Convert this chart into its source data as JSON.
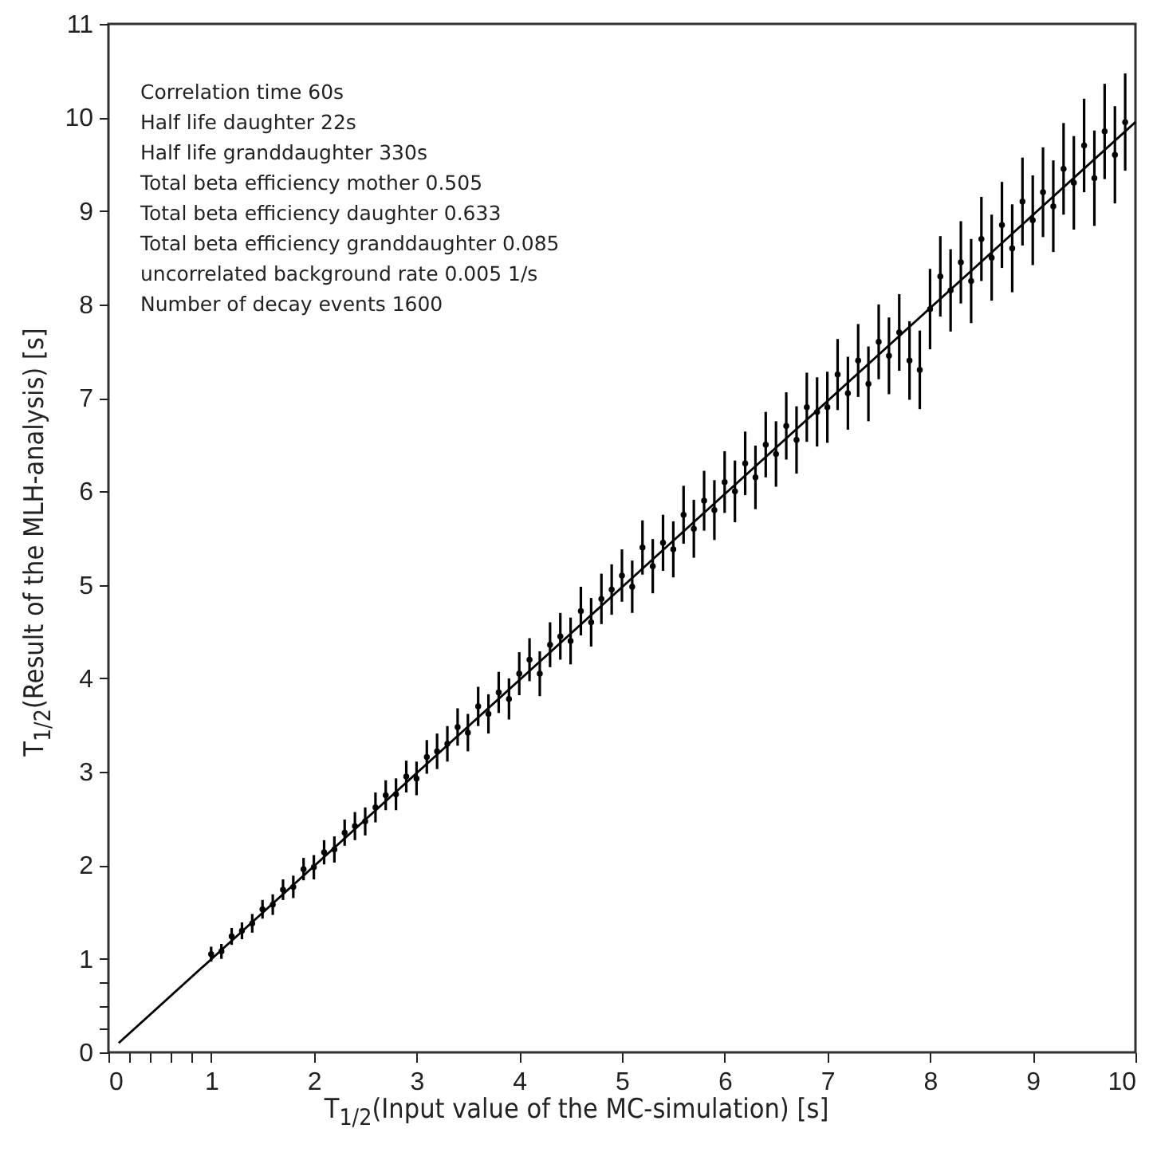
{
  "chart_data": {
    "type": "scatter",
    "xlabel": "T$_{1/2}$(Input value of the MC-simulation)  [s]",
    "ylabel": "T$_{1/2}$(Result of the MLH-analysis)  [s]",
    "annotations": [
      "Correlation time 60s",
      "Half life daughter 22s",
      "Half life granddaughter 330s",
      "Total beta efficiency mother    0.505",
      "Total beta efficiency daughter 0.633",
      "Total beta efficiency granddaughter 0.085",
      "uncorrelated background rate 0.005 1/s",
      "Number of decay events 1600"
    ],
    "xlim": [
      0,
      10
    ],
    "ylim": [
      0,
      11
    ],
    "xticks": [
      0,
      {
        "value": 0.2,
        "label": null
      },
      {
        "value": 0.4,
        "label": null
      },
      {
        "value": 0.6,
        "label": null
      },
      {
        "value": 0.8,
        "label": null
      },
      1,
      2,
      3,
      4,
      5,
      6,
      7,
      8,
      9,
      10
    ],
    "yticks": [
      0,
      {
        "value": 0.25,
        "label": null
      },
      {
        "value": 0.5,
        "label": null
      },
      {
        "value": 0.75,
        "label": null
      },
      1,
      2,
      3,
      4,
      5,
      6,
      7,
      8,
      9,
      10,
      11
    ],
    "grid": false,
    "marker": "circle",
    "series": [
      {
        "color": "#000000",
        "x": [
          1.0,
          1.1,
          1.2,
          1.3,
          1.4,
          1.5,
          1.6,
          1.7,
          1.8,
          1.9,
          2.0,
          2.1,
          2.2,
          2.3,
          2.4,
          2.5,
          2.6,
          2.7,
          2.8,
          2.9,
          3.0,
          3.1,
          3.2,
          3.3,
          3.4,
          3.5,
          3.6,
          3.7,
          3.8,
          3.9,
          4.0,
          4.1,
          4.2,
          4.3,
          4.4,
          4.5,
          4.6,
          4.7,
          4.8,
          4.9,
          5.0,
          5.1,
          5.2,
          5.3,
          5.4,
          5.5,
          5.6,
          5.7,
          5.8,
          5.9,
          6.0,
          6.1,
          6.2,
          6.3,
          6.4,
          6.5,
          6.6,
          6.7,
          6.8,
          6.9,
          7.0,
          7.1,
          7.2,
          7.3,
          7.4,
          7.5,
          7.6,
          7.7,
          7.8,
          7.9,
          8.0,
          8.1,
          8.2,
          8.3,
          8.4,
          8.5,
          8.6,
          8.7,
          8.8,
          8.9,
          9.0,
          9.1,
          9.2,
          9.3,
          9.4,
          9.5,
          9.6,
          9.7,
          9.8,
          9.9
        ],
        "values": [
          1.05,
          1.08,
          1.24,
          1.3,
          1.38,
          1.53,
          1.58,
          1.74,
          1.77,
          1.96,
          1.98,
          2.14,
          2.17,
          2.35,
          2.42,
          2.47,
          2.62,
          2.75,
          2.76,
          2.95,
          2.93,
          3.16,
          3.22,
          3.3,
          3.48,
          3.42,
          3.7,
          3.62,
          3.85,
          3.78,
          4.05,
          4.2,
          4.05,
          4.36,
          4.45,
          4.4,
          4.72,
          4.6,
          4.85,
          4.95,
          5.1,
          4.98,
          5.4,
          5.2,
          5.45,
          5.38,
          5.75,
          5.6,
          5.9,
          5.8,
          6.1,
          6.0,
          6.3,
          6.15,
          6.5,
          6.4,
          6.7,
          6.55,
          6.9,
          6.85,
          6.9,
          7.25,
          7.05,
          7.4,
          7.15,
          7.6,
          7.45,
          7.7,
          7.4,
          7.3,
          7.95,
          8.3,
          8.15,
          8.45,
          8.25,
          8.7,
          8.5,
          8.85,
          8.6,
          9.1,
          8.9,
          9.2,
          9.05,
          9.45,
          9.3,
          9.7,
          9.35,
          9.85,
          9.6,
          9.95
        ],
        "errors": [
          0.08,
          0.08,
          0.09,
          0.09,
          0.1,
          0.1,
          0.11,
          0.11,
          0.12,
          0.12,
          0.13,
          0.13,
          0.14,
          0.14,
          0.15,
          0.15,
          0.16,
          0.16,
          0.17,
          0.17,
          0.18,
          0.18,
          0.19,
          0.19,
          0.2,
          0.2,
          0.21,
          0.21,
          0.22,
          0.22,
          0.23,
          0.23,
          0.24,
          0.24,
          0.25,
          0.25,
          0.26,
          0.26,
          0.27,
          0.27,
          0.28,
          0.28,
          0.29,
          0.29,
          0.3,
          0.3,
          0.31,
          0.31,
          0.32,
          0.32,
          0.33,
          0.33,
          0.34,
          0.34,
          0.35,
          0.35,
          0.36,
          0.36,
          0.37,
          0.37,
          0.38,
          0.38,
          0.39,
          0.39,
          0.4,
          0.4,
          0.41,
          0.41,
          0.42,
          0.42,
          0.43,
          0.43,
          0.44,
          0.44,
          0.45,
          0.45,
          0.46,
          0.46,
          0.47,
          0.47,
          0.48,
          0.48,
          0.49,
          0.49,
          0.5,
          0.5,
          0.51,
          0.51,
          0.52,
          0.52
        ]
      },
      {
        "type": "line",
        "marker": "none",
        "color": "#000000",
        "x": [
          0.1,
          10
        ],
        "values": [
          0.1,
          9.95
        ]
      }
    ]
  }
}
